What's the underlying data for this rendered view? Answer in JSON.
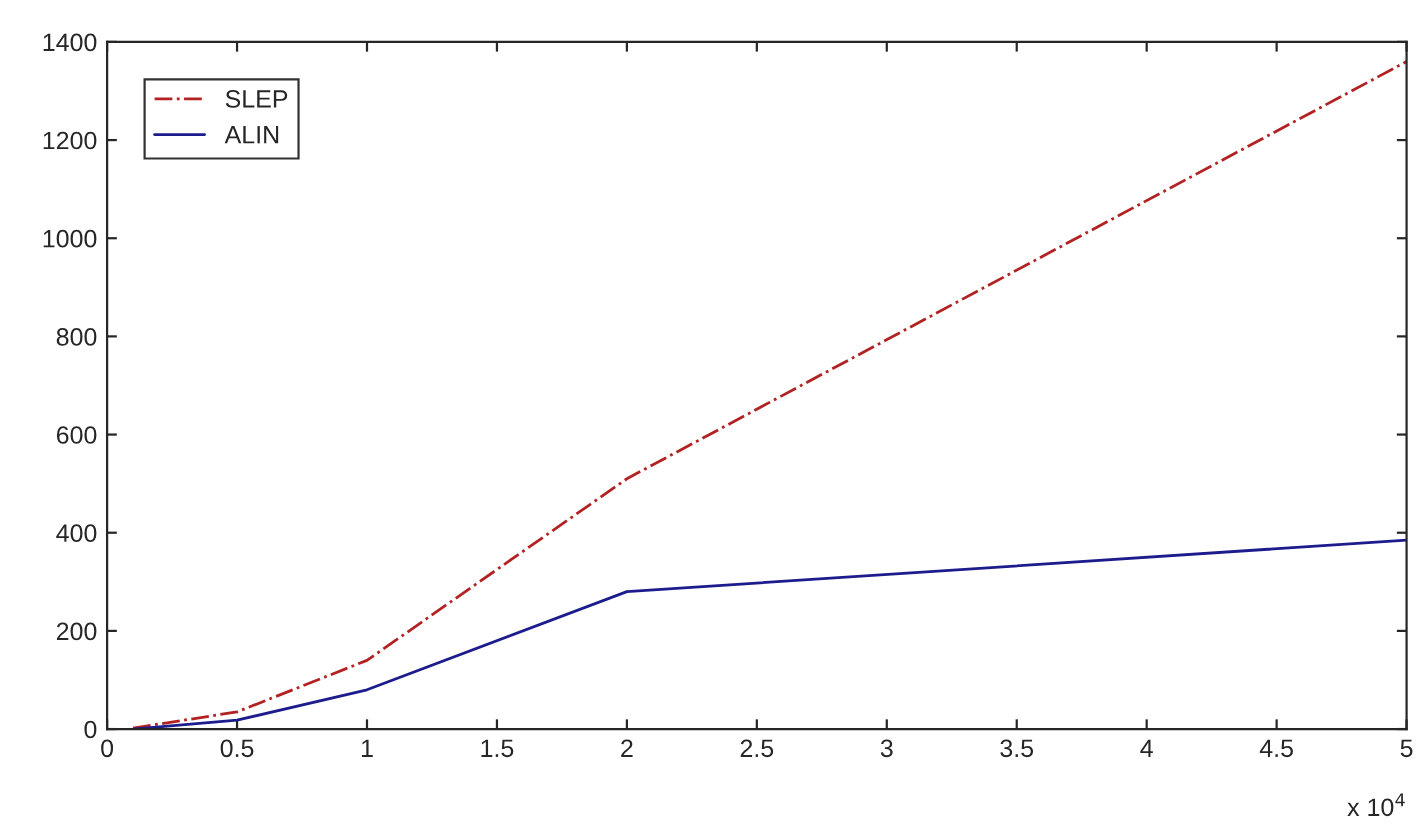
{
  "chart_data": {
    "type": "line",
    "series": [
      {
        "name": "SLEP",
        "color": "#b22222",
        "line_style": "dashdot",
        "x": [
          0.1,
          0.5,
          1,
          2,
          5
        ],
        "values": [
          2,
          35,
          140,
          510,
          1360
        ]
      },
      {
        "name": "ALIN",
        "color": "#1c1c8c",
        "line_style": "solid",
        "x": [
          0.1,
          0.5,
          1,
          2,
          5
        ],
        "values": [
          0,
          18,
          80,
          280,
          385
        ]
      }
    ],
    "xlim": [
      0,
      5
    ],
    "ylim": [
      0,
      1400
    ],
    "xticks": [
      0,
      0.5,
      1,
      1.5,
      2,
      2.5,
      3,
      3.5,
      4,
      4.5,
      5
    ],
    "yticks": [
      0,
      200,
      400,
      600,
      800,
      1000,
      1200,
      1400
    ],
    "annotations": [
      "x 10$^{4}$"
    ],
    "grid": false,
    "legend": "top left"
  }
}
